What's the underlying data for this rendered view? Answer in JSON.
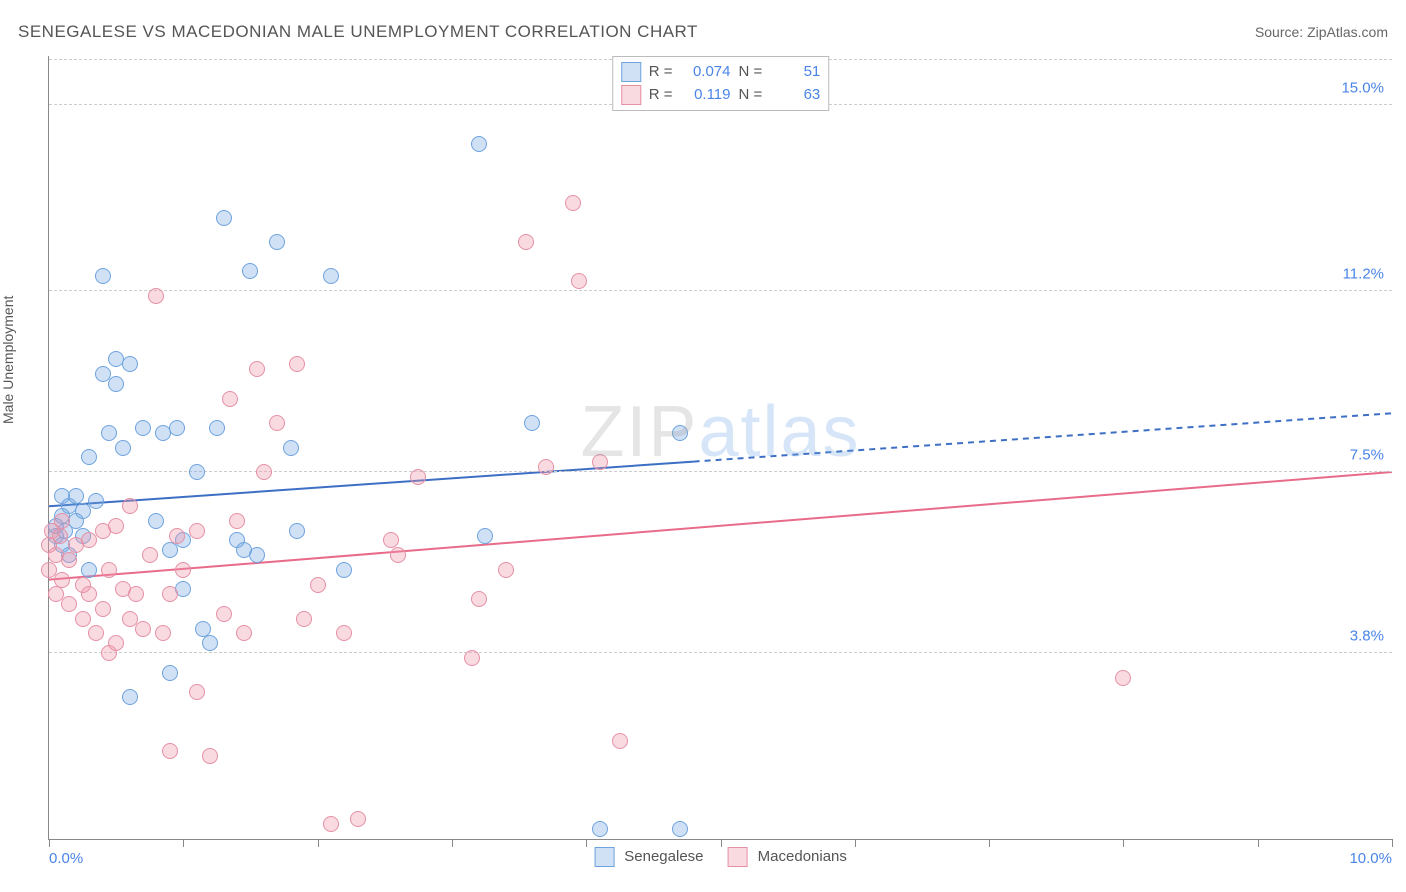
{
  "title": "SENEGALESE VS MACEDONIAN MALE UNEMPLOYMENT CORRELATION CHART",
  "source": "Source: ZipAtlas.com",
  "y_axis_label": "Male Unemployment",
  "watermark": {
    "left": "ZIP",
    "right": "atlas"
  },
  "chart": {
    "type": "scatter",
    "background_color": "#ffffff",
    "grid_color": "#cccccc",
    "axis_color": "#888888",
    "label_color": "#4a84e8",
    "title_fontsize": 17,
    "label_fontsize": 15,
    "xlim": [
      0.0,
      10.0
    ],
    "ylim": [
      0.0,
      16.0
    ],
    "y_gridlines": [
      3.8,
      7.5,
      11.2,
      15.0
    ],
    "y_tick_labels": [
      "3.8%",
      "7.5%",
      "11.2%",
      "15.0%"
    ],
    "x_ticks": [
      0,
      1,
      2,
      3,
      4,
      5,
      6,
      7,
      8,
      9,
      10
    ],
    "x_tick_labels": {
      "0": "0.0%",
      "10": "10.0%"
    },
    "marker_size": 16,
    "line_width": 2
  },
  "series": [
    {
      "name": "Senegalese",
      "fill": "rgba(120,170,230,0.35)",
      "stroke": "#6ea3dd",
      "line_color": "#3d6fc4",
      "R": "0.074",
      "N": "51",
      "trend": {
        "y_at_x0": 6.8,
        "y_at_x10": 8.7,
        "solid_to_x": 4.8
      },
      "points": [
        [
          0.05,
          6.2
        ],
        [
          0.05,
          6.4
        ],
        [
          0.1,
          6.6
        ],
        [
          0.1,
          6.0
        ],
        [
          0.1,
          7.0
        ],
        [
          0.12,
          6.3
        ],
        [
          0.15,
          6.8
        ],
        [
          0.15,
          5.8
        ],
        [
          0.2,
          6.5
        ],
        [
          0.2,
          7.0
        ],
        [
          0.25,
          6.2
        ],
        [
          0.25,
          6.7
        ],
        [
          0.3,
          7.8
        ],
        [
          0.3,
          5.5
        ],
        [
          0.35,
          6.9
        ],
        [
          0.4,
          9.5
        ],
        [
          0.4,
          11.5
        ],
        [
          0.45,
          8.3
        ],
        [
          0.5,
          9.8
        ],
        [
          0.5,
          9.3
        ],
        [
          0.55,
          8.0
        ],
        [
          0.6,
          9.7
        ],
        [
          0.6,
          2.9
        ],
        [
          0.7,
          8.4
        ],
        [
          0.8,
          6.5
        ],
        [
          0.85,
          8.3
        ],
        [
          0.9,
          5.9
        ],
        [
          0.9,
          3.4
        ],
        [
          0.95,
          8.4
        ],
        [
          1.0,
          5.1
        ],
        [
          1.0,
          6.1
        ],
        [
          1.1,
          7.5
        ],
        [
          1.15,
          4.3
        ],
        [
          1.2,
          4.0
        ],
        [
          1.25,
          8.4
        ],
        [
          1.3,
          12.7
        ],
        [
          1.4,
          6.1
        ],
        [
          1.45,
          5.9
        ],
        [
          1.5,
          11.6
        ],
        [
          1.55,
          5.8
        ],
        [
          1.7,
          12.2
        ],
        [
          1.8,
          8.0
        ],
        [
          1.85,
          6.3
        ],
        [
          2.1,
          11.5
        ],
        [
          2.2,
          5.5
        ],
        [
          3.2,
          14.2
        ],
        [
          3.25,
          6.2
        ],
        [
          3.6,
          8.5
        ],
        [
          4.1,
          0.2
        ],
        [
          4.7,
          0.2
        ],
        [
          4.7,
          8.3
        ]
      ]
    },
    {
      "name": "Macedonians",
      "fill": "rgba(240,150,170,0.35)",
      "stroke": "#e590a5",
      "line_color": "#e86b8a",
      "R": "0.119",
      "N": "63",
      "trend": {
        "y_at_x0": 5.3,
        "y_at_x10": 7.5,
        "solid_to_x": 10.0
      },
      "points": [
        [
          0.0,
          6.0
        ],
        [
          0.0,
          5.5
        ],
        [
          0.02,
          6.3
        ],
        [
          0.05,
          5.0
        ],
        [
          0.05,
          5.8
        ],
        [
          0.08,
          6.2
        ],
        [
          0.1,
          5.3
        ],
        [
          0.1,
          6.5
        ],
        [
          0.15,
          5.7
        ],
        [
          0.15,
          4.8
        ],
        [
          0.2,
          6.0
        ],
        [
          0.25,
          5.2
        ],
        [
          0.25,
          4.5
        ],
        [
          0.3,
          6.1
        ],
        [
          0.3,
          5.0
        ],
        [
          0.35,
          4.2
        ],
        [
          0.4,
          6.3
        ],
        [
          0.4,
          4.7
        ],
        [
          0.45,
          5.5
        ],
        [
          0.45,
          3.8
        ],
        [
          0.5,
          6.4
        ],
        [
          0.5,
          4.0
        ],
        [
          0.55,
          5.1
        ],
        [
          0.6,
          4.5
        ],
        [
          0.6,
          6.8
        ],
        [
          0.65,
          5.0
        ],
        [
          0.7,
          4.3
        ],
        [
          0.75,
          5.8
        ],
        [
          0.8,
          11.1
        ],
        [
          0.85,
          4.2
        ],
        [
          0.9,
          5.0
        ],
        [
          0.9,
          1.8
        ],
        [
          0.95,
          6.2
        ],
        [
          1.0,
          5.5
        ],
        [
          1.1,
          6.3
        ],
        [
          1.1,
          3.0
        ],
        [
          1.2,
          1.7
        ],
        [
          1.3,
          4.6
        ],
        [
          1.35,
          9.0
        ],
        [
          1.4,
          6.5
        ],
        [
          1.45,
          4.2
        ],
        [
          1.55,
          9.6
        ],
        [
          1.6,
          7.5
        ],
        [
          1.7,
          8.5
        ],
        [
          1.85,
          9.7
        ],
        [
          1.9,
          4.5
        ],
        [
          2.0,
          5.2
        ],
        [
          2.1,
          0.3
        ],
        [
          2.2,
          4.2
        ],
        [
          2.3,
          0.4
        ],
        [
          2.55,
          6.1
        ],
        [
          2.6,
          5.8
        ],
        [
          2.75,
          7.4
        ],
        [
          3.15,
          3.7
        ],
        [
          3.2,
          4.9
        ],
        [
          3.4,
          5.5
        ],
        [
          3.55,
          12.2
        ],
        [
          3.7,
          7.6
        ],
        [
          3.9,
          13.0
        ],
        [
          3.95,
          11.4
        ],
        [
          4.1,
          7.7
        ],
        [
          4.25,
          2.0
        ],
        [
          8.0,
          3.3
        ]
      ]
    }
  ],
  "legend_top_labels": {
    "R": "R =",
    "N": "N ="
  },
  "legend_bottom": [
    "Senegalese",
    "Macedonians"
  ]
}
